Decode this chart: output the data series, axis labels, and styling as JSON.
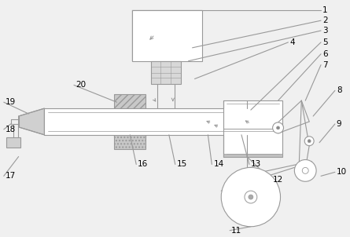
{
  "bg_color": "#f0f0f0",
  "lc": "#999999",
  "fc_hatch": "#d0d0d0",
  "fig_w": 4.45,
  "fig_h": 3.02,
  "dpi": 100,
  "font_size": 7.5
}
